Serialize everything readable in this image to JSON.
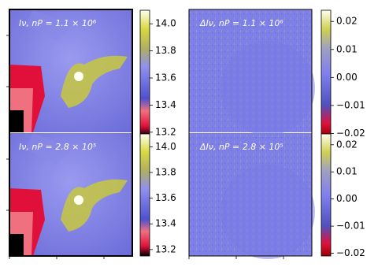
{
  "panels": [
    {
      "label": "Iν,  nP = 1.1 × 10⁶",
      "colorbar": {
        "lim": [
          13.17,
          14.1
        ],
        "ticks": [
          13.2,
          13.4,
          13.6,
          13.8,
          {
            "value": 14,
            "label": "14.0"
          }
        ]
      }
    },
    {
      "label": "ΔIν,  nP = 1.1 × 10⁶",
      "colorbar": {
        "lim": [
          -0.021,
          0.024
        ],
        "ticks": [
          {
            "value": -0.02,
            "label": "−0.02"
          },
          {
            "value": -0.01,
            "label": "−0.01"
          },
          {
            "value": 0,
            "label": "0.00"
          },
          0.01,
          0.02
        ]
      }
    },
    {
      "label": "Iν,  nP = 2.8 × 10⁵",
      "colorbar": {
        "lim": [
          13.15,
          14.1
        ],
        "ticks": [
          13.2,
          13.4,
          13.6,
          13.8,
          {
            "value": 14,
            "label": "14.0"
          }
        ]
      }
    },
    {
      "label": "ΔIν,  nP = 2.8 × 10⁵",
      "colorbar": {
        "lim": [
          -0.021,
          0.024
        ],
        "ticks": [
          {
            "value": -0.02,
            "label": "−0.02"
          },
          {
            "value": -0.01,
            "label": "−0.01"
          },
          {
            "value": 0,
            "label": "0.00"
          },
          0.01,
          0.02
        ]
      }
    }
  ]
}
